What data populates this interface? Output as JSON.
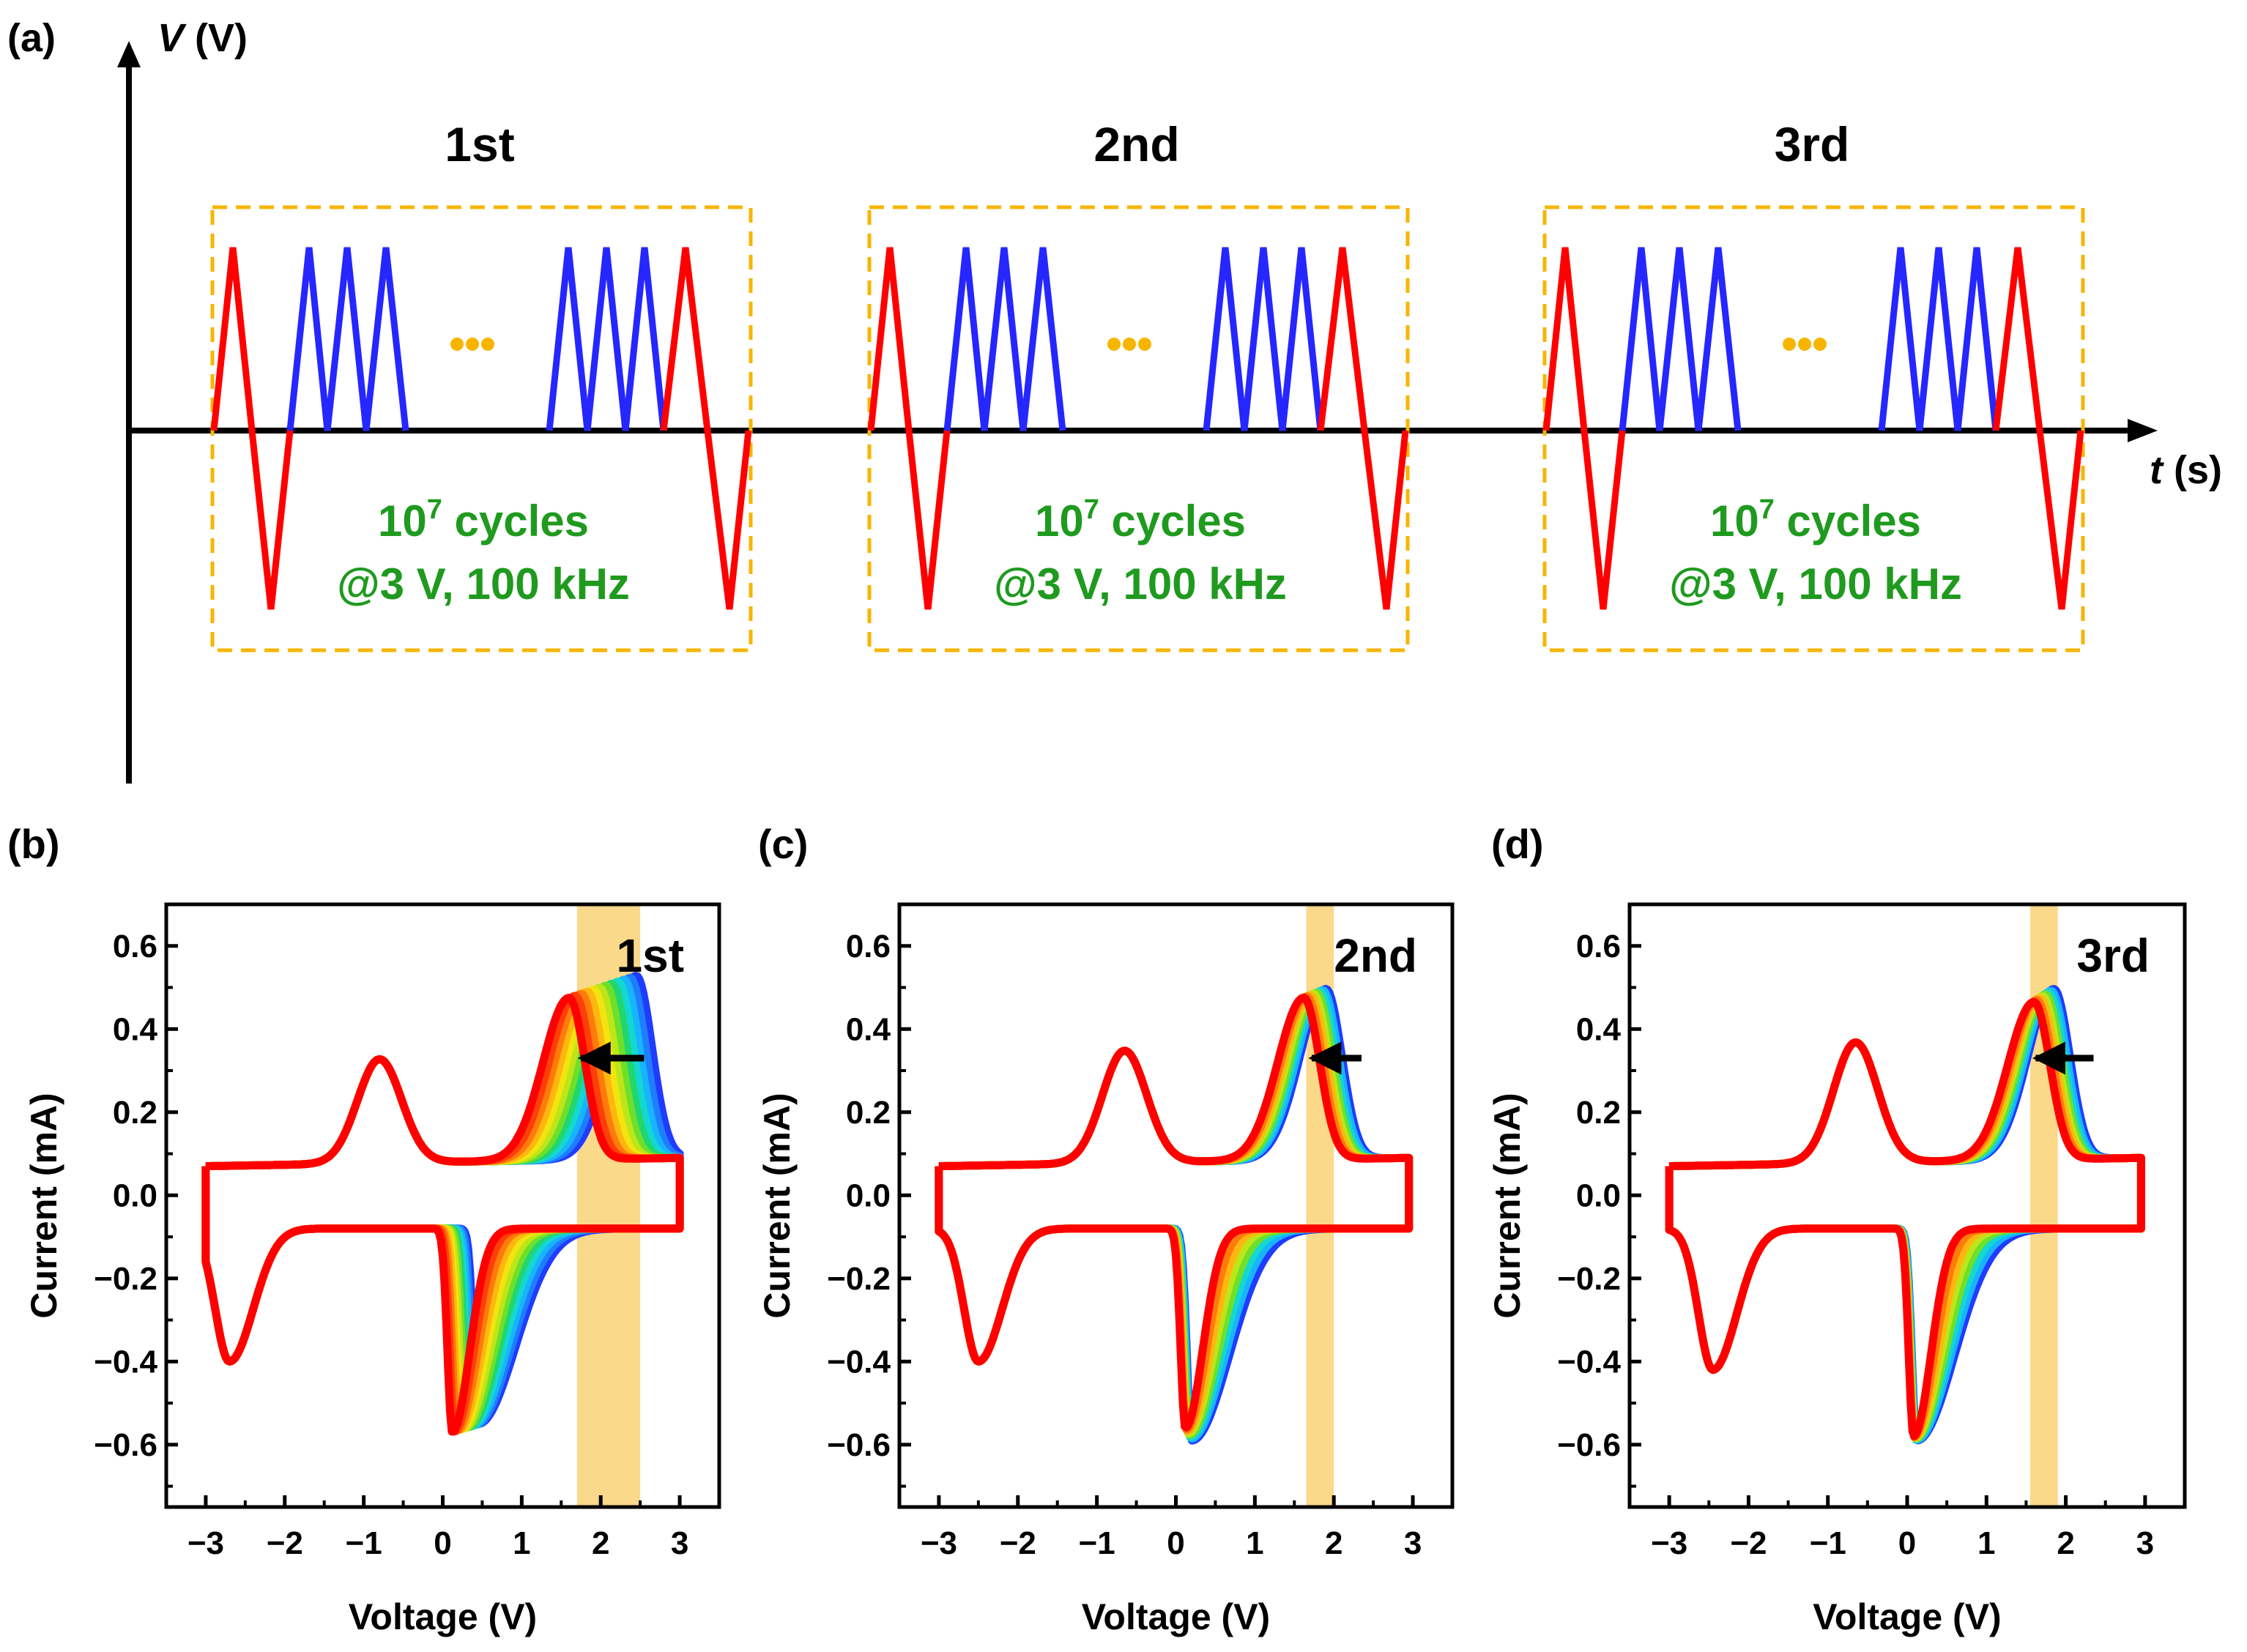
{
  "colors": {
    "red": "#ff0000",
    "blue": "#2626ff",
    "green": "#1f9a1f",
    "orange": "#f7b500",
    "band": "#fbd98a",
    "black": "#000000"
  },
  "panel_a": {
    "label": "(a)",
    "y_axis_symbol": "V",
    "y_axis_unit": " (V)",
    "x_axis_symbol": "t",
    "x_axis_unit": " (s)",
    "blocks": [
      {
        "title": "1st",
        "cycles_base": "10",
        "cycles_exp": "7",
        "cycles_word": " cycles",
        "condition": "@3 V, 100 kHz"
      },
      {
        "title": "2nd",
        "cycles_base": "10",
        "cycles_exp": "7",
        "cycles_word": " cycles",
        "condition": "@3 V, 100 kHz"
      },
      {
        "title": "3rd",
        "cycles_base": "10",
        "cycles_exp": "7",
        "cycles_word": " cycles",
        "condition": "@3 V, 100 kHz"
      }
    ]
  },
  "chart_data": [
    {
      "panel": "(b)",
      "type": "line",
      "title": "1st",
      "xlabel": "Voltage (V)",
      "ylabel": "Current (mA)",
      "xlim": [
        -3.5,
        3.5
      ],
      "ylim": [
        -0.75,
        0.7
      ],
      "xticks": [
        -3,
        -2,
        -1,
        0,
        1,
        2,
        3
      ],
      "xtick_labels": [
        "−3",
        "−2",
        "−1",
        "0",
        "1",
        "2",
        "3"
      ],
      "yticks": [
        -0.6,
        -0.4,
        -0.2,
        0.0,
        0.2,
        0.4,
        0.6
      ],
      "ytick_labels": [
        "−0.6",
        "−0.4",
        "−0.2",
        "0.0",
        "0.2",
        "0.4",
        "0.6"
      ],
      "highlight_band_x": [
        1.7,
        2.5
      ],
      "arrow": {
        "from": [
          2.55,
          0.33
        ],
        "to": [
          1.75,
          0.33
        ]
      },
      "series_count": 12,
      "curve": {
        "vmin": -3.0,
        "vmax": 3.0,
        "ox_peak": {
          "v_first": 2.45,
          "v_last": 1.6,
          "i_first": 0.52,
          "i_last": 0.47
        },
        "ox_small_peak": {
          "v": -0.8,
          "i": 0.32
        },
        "red_peak": {
          "v_first": 0.45,
          "v_last": 0.12,
          "i_first": -0.55,
          "i_last": -0.57
        },
        "red_small_peak": {
          "v": -2.7,
          "i": -0.4
        },
        "baseline_top": 0.07,
        "baseline_bottom": -0.08
      }
    },
    {
      "panel": "(c)",
      "type": "line",
      "title": "2nd",
      "xlabel": "Voltage (V)",
      "ylabel": "Current (mA)",
      "xlim": [
        -3.5,
        3.5
      ],
      "ylim": [
        -0.75,
        0.7
      ],
      "xticks": [
        -3,
        -2,
        -1,
        0,
        1,
        2,
        3
      ],
      "xtick_labels": [
        "−3",
        "−2",
        "−1",
        "0",
        "1",
        "2",
        "3"
      ],
      "yticks": [
        -0.6,
        -0.4,
        -0.2,
        0.0,
        0.2,
        0.4,
        0.6
      ],
      "ytick_labels": [
        "−0.6",
        "−0.4",
        "−0.2",
        "0.0",
        "0.2",
        "0.4",
        "0.6"
      ],
      "highlight_band_x": [
        1.65,
        2.0
      ],
      "arrow": {
        "from": [
          2.35,
          0.33
        ],
        "to": [
          1.72,
          0.33
        ]
      },
      "series_count": 8,
      "curve": {
        "vmin": -3.0,
        "vmax": 2.95,
        "ox_peak": {
          "v_first": 1.9,
          "v_last": 1.62,
          "i_first": 0.49,
          "i_last": 0.47
        },
        "ox_small_peak": {
          "v": -0.65,
          "i": 0.34
        },
        "red_peak": {
          "v_first": 0.2,
          "v_last": 0.12,
          "i_first": -0.59,
          "i_last": -0.56
        },
        "red_small_peak": {
          "v": -2.5,
          "i": -0.4
        },
        "baseline_top": 0.07,
        "baseline_bottom": -0.08
      }
    },
    {
      "panel": "(d)",
      "type": "line",
      "title": "3rd",
      "xlabel": "Voltage (V)",
      "ylabel": "Current (mA)",
      "xlim": [
        -3.5,
        3.5
      ],
      "ylim": [
        -0.75,
        0.7
      ],
      "xticks": [
        -3,
        -2,
        -1,
        0,
        1,
        2,
        3
      ],
      "xtick_labels": [
        "−3",
        "−2",
        "−1",
        "0",
        "1",
        "2",
        "3"
      ],
      "yticks": [
        -0.6,
        -0.4,
        -0.2,
        0.0,
        0.2,
        0.4,
        0.6
      ],
      "ytick_labels": [
        "−0.6",
        "−0.4",
        "−0.2",
        "0.0",
        "0.2",
        "0.4",
        "0.6"
      ],
      "highlight_band_x": [
        1.55,
        1.9
      ],
      "arrow": {
        "from": [
          2.35,
          0.33
        ],
        "to": [
          1.62,
          0.33
        ]
      },
      "series_count": 8,
      "curve": {
        "vmin": -3.0,
        "vmax": 2.95,
        "ox_peak": {
          "v_first": 1.85,
          "v_last": 1.6,
          "i_first": 0.49,
          "i_last": 0.46
        },
        "ox_small_peak": {
          "v": -0.65,
          "i": 0.36
        },
        "red_peak": {
          "v_first": 0.12,
          "v_last": 0.08,
          "i_first": -0.59,
          "i_last": -0.58
        },
        "red_small_peak": {
          "v": -2.45,
          "i": -0.42
        },
        "baseline_top": 0.07,
        "baseline_bottom": -0.08
      }
    }
  ]
}
